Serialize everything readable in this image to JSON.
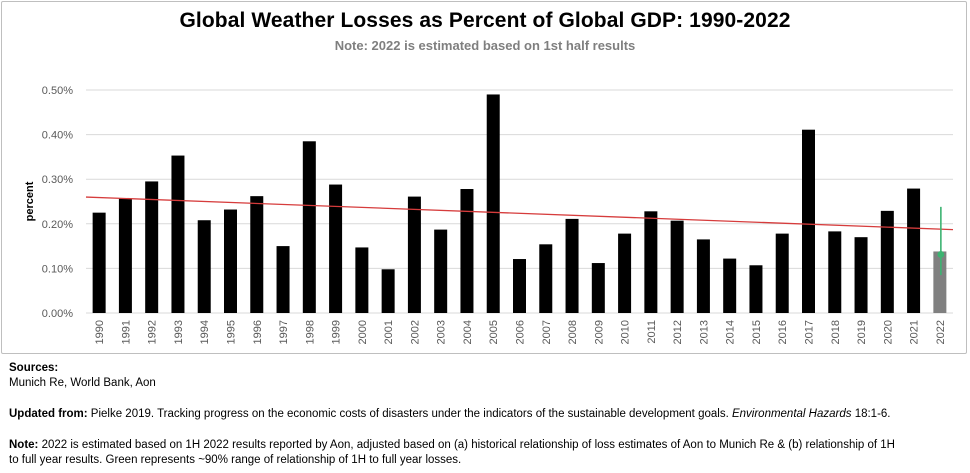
{
  "chart_data": {
    "type": "bar",
    "title": "Global Weather Losses as Percent of Global GDP: 1990-2022",
    "subtitle": "Note: 2022 is estimated based on 1st half results",
    "xlabel": "",
    "ylabel": "percent",
    "ylim": [
      0,
      0.5
    ],
    "yticks": [
      "0.00%",
      "0.10%",
      "0.20%",
      "0.30%",
      "0.40%",
      "0.50%"
    ],
    "categories": [
      "1990",
      "1991",
      "1992",
      "1993",
      "1994",
      "1995",
      "1996",
      "1997",
      "1998",
      "1999",
      "2000",
      "2001",
      "2002",
      "2003",
      "2004",
      "2005",
      "2006",
      "2007",
      "2008",
      "2009",
      "2010",
      "2011",
      "2012",
      "2013",
      "2014",
      "2015",
      "2016",
      "2017",
      "2018",
      "2019",
      "2020",
      "2021",
      "2022"
    ],
    "values": [
      0.225,
      0.257,
      0.295,
      0.353,
      0.208,
      0.232,
      0.262,
      0.15,
      0.385,
      0.288,
      0.147,
      0.098,
      0.261,
      0.187,
      0.278,
      0.49,
      0.121,
      0.154,
      0.211,
      0.112,
      0.178,
      0.228,
      0.207,
      0.165,
      0.122,
      0.107,
      0.178,
      0.411,
      0.183,
      0.17,
      0.229,
      0.279,
      0.138
    ],
    "trendline": {
      "start": 0.26,
      "end": 0.187,
      "color": "#d63c3c"
    },
    "estimate_range": {
      "category": "2022",
      "low": 0.085,
      "high": 0.238,
      "color": "#3cb371"
    },
    "colors": {
      "bar": "#000000",
      "estimate_bar": "#808080",
      "grid": "#d9d9d9"
    }
  },
  "notes": {
    "sources_label": "Sources:",
    "sources_text": "Munich Re,  World Bank,  Aon",
    "updated_label": "Updated from:",
    "updated_text": " Pielke 2019. Tracking progress on the economic costs of disasters under the indicators of the sustainable development goals. ",
    "updated_journal": "Environmental Hazards",
    "updated_ref": " 18:1-6.",
    "note_label": "Note:",
    "note_line1": " 2022 is estimated based on 1H 2022 results reported by Aon, adjusted based on (a) historical relationship of loss estimates of Aon to Munich Re & (b) relationship of 1H",
    "note_line2": "to full year results. Green represents ~90% range of relationship of 1H to full year losses."
  }
}
